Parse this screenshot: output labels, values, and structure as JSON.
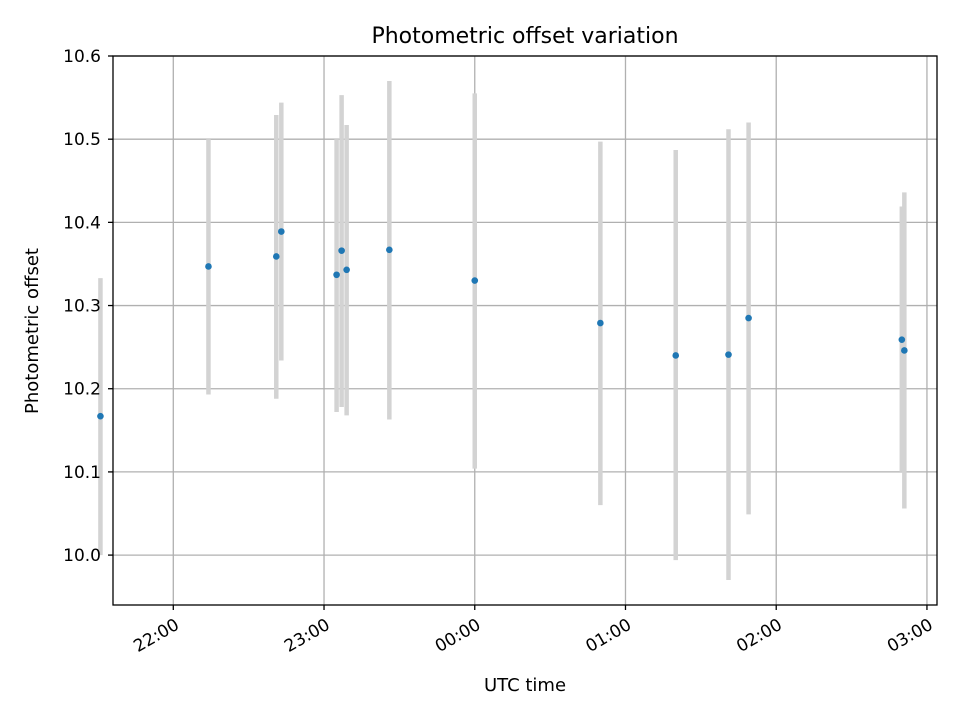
{
  "chart_data": {
    "type": "scatter",
    "title": "Photometric offset variation",
    "xlabel": "UTC time",
    "ylabel": "Photometric offset",
    "x_axis": {
      "kind": "time",
      "range": [
        "21:36",
        "03:04"
      ],
      "ticks": [
        "22:00",
        "23:00",
        "00:00",
        "01:00",
        "02:00",
        "03:00"
      ]
    },
    "y_axis": {
      "range": [
        9.94,
        10.6
      ],
      "ticks": [
        10.0,
        10.1,
        10.2,
        10.3,
        10.4,
        10.5,
        10.6
      ],
      "tick_labels": [
        "10.0",
        "10.1",
        "10.2",
        "10.3",
        "10.4",
        "10.5",
        "10.6"
      ]
    },
    "grid": true,
    "colors": {
      "point": "#1f77b4",
      "errorbar": "#d3d3d3",
      "grid": "#b0b0b0"
    },
    "points": [
      {
        "time": "21:31",
        "y": 10.167,
        "ylo": 10.0,
        "yhi": 10.333
      },
      {
        "time": "22:14",
        "y": 10.347,
        "ylo": 10.193,
        "yhi": 10.5
      },
      {
        "time": "22:41",
        "y": 10.359,
        "ylo": 10.188,
        "yhi": 10.529
      },
      {
        "time": "22:43",
        "y": 10.389,
        "ylo": 10.234,
        "yhi": 10.544
      },
      {
        "time": "23:05",
        "y": 10.337,
        "ylo": 10.172,
        "yhi": 10.5
      },
      {
        "time": "23:07",
        "y": 10.366,
        "ylo": 10.178,
        "yhi": 10.553
      },
      {
        "time": "23:09",
        "y": 10.343,
        "ylo": 10.168,
        "yhi": 10.517
      },
      {
        "time": "23:26",
        "y": 10.367,
        "ylo": 10.163,
        "yhi": 10.57
      },
      {
        "time": "00:00",
        "y": 10.33,
        "ylo": 10.104,
        "yhi": 10.555
      },
      {
        "time": "00:50",
        "y": 10.279,
        "ylo": 10.06,
        "yhi": 10.497
      },
      {
        "time": "01:20",
        "y": 10.24,
        "ylo": 9.994,
        "yhi": 10.487
      },
      {
        "time": "01:41",
        "y": 10.241,
        "ylo": 9.97,
        "yhi": 10.512
      },
      {
        "time": "01:49",
        "y": 10.285,
        "ylo": 10.049,
        "yhi": 10.52
      },
      {
        "time": "02:50",
        "y": 10.259,
        "ylo": 10.1,
        "yhi": 10.419
      },
      {
        "time": "02:51",
        "y": 10.246,
        "ylo": 10.056,
        "yhi": 10.436
      }
    ]
  }
}
